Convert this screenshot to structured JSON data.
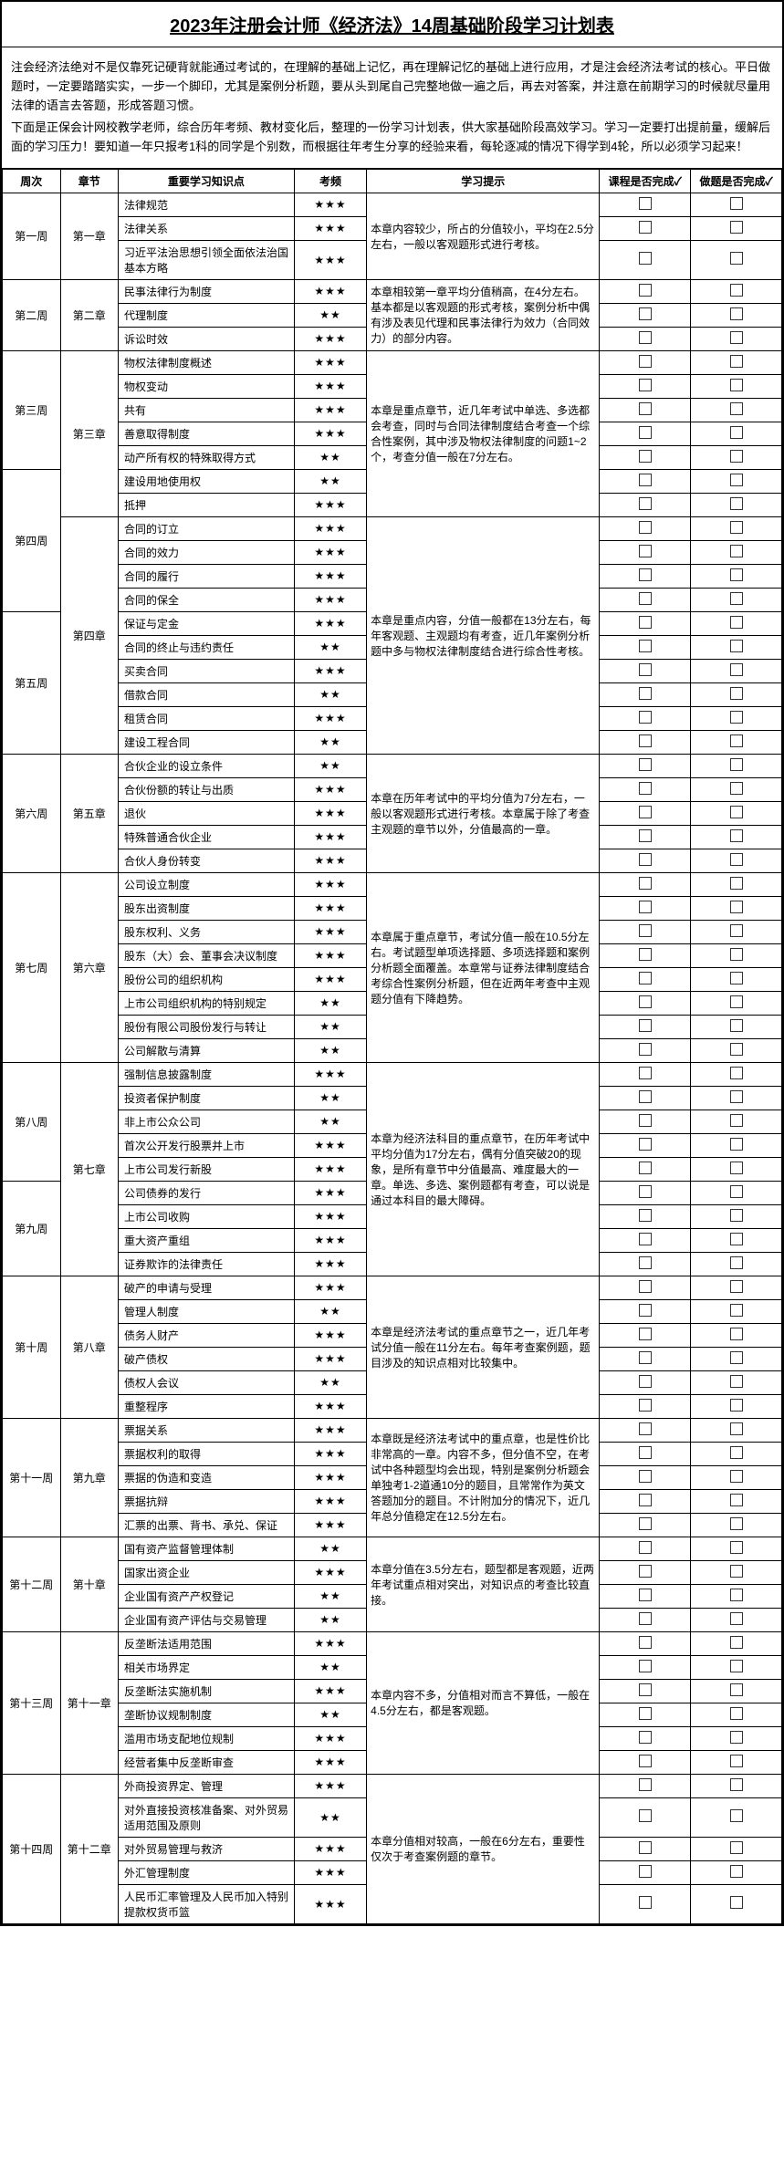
{
  "title": "2023年注册会计师《经济法》14周基础阶段学习计划表",
  "intro_p1": "注会经济法绝对不是仅靠死记硬背就能通过考试的，在理解的基础上记忆，再在理解记忆的基础上进行应用，才是注会经济法考试的核心。平日做题时，一定要踏踏实实，一步一个脚印，尤其是案例分析题，要从头到尾自己完整地做一遍之后，再去对答案，并注意在前期学习的时候就尽量用法律的语言去答题，形成答题习惯。",
  "intro_p2": "下面是正保会计网校教学老师，综合历年考频、教材变化后，整理的一份学习计划表，供大家基础阶段高效学习。学习一定要打出提前量，缓解后面的学习压力！要知道一年只报考1科的同学是个别数，而根据往年考生分享的经验来看，每轮逐减的情况下得学到4轮，所以必须学习起来！",
  "headers": {
    "week": "周次",
    "chapter": "章节",
    "point": "重要学习知识点",
    "freq": "考频",
    "tip": "学习提示",
    "done1": "课程是否完成✓",
    "done2": "做题是否完成✓"
  },
  "plan": [
    {
      "week": "第一周",
      "chapterBlocks": [
        {
          "chapter": "第一章",
          "rows": [
            {
              "point": "法律规范",
              "freq": "★★★"
            },
            {
              "point": "法律关系",
              "freq": "★★★"
            },
            {
              "point": "习近平法治思想引领全面依法治国基本方略",
              "freq": "★★★"
            }
          ],
          "tip": "本章内容较少，所占的分值较小，平均在2.5分左右，一般以客观题形式进行考核。"
        }
      ]
    },
    {
      "week": "第二周",
      "chapterBlocks": [
        {
          "chapter": "第二章",
          "rows": [
            {
              "point": "民事法律行为制度",
              "freq": "★★★"
            },
            {
              "point": "代理制度",
              "freq": "★★"
            },
            {
              "point": "诉讼时效",
              "freq": "★★★"
            }
          ],
          "tip": "本章相较第一章平均分值稍高，在4分左右。基本都是以客观题的形式考核，案例分析中偶有涉及表见代理和民事法律行为效力（合同效力）的部分内容。"
        }
      ]
    },
    {
      "week": "第三周",
      "chapterBlocks": [
        {
          "chapter": "第三章",
          "rows": [
            {
              "point": "物权法律制度概述",
              "freq": "★★★"
            },
            {
              "point": "物权变动",
              "freq": "★★★"
            },
            {
              "point": "共有",
              "freq": "★★★"
            },
            {
              "point": "善意取得制度",
              "freq": "★★★"
            },
            {
              "point": "动产所有权的特殊取得方式",
              "freq": "★★"
            },
            {
              "point": "建设用地使用权",
              "freq": "★★"
            },
            {
              "point": "抵押",
              "freq": "★★★"
            }
          ],
          "tip": "本章是重点章节，近几年考试中单选、多选都会考查，同时与合同法律制度结合考查一个综合性案例，其中涉及物权法律制度的问题1~2个，考查分值一般在7分左右。",
          "splitAfter": 5,
          "weekAfterSplit": "第四周"
        }
      ]
    },
    {
      "week": "第五周",
      "mergeUpWeek": true,
      "chapterBlocks": [
        {
          "chapter": "第四章",
          "weekRows": [
            {
              "week": "第四周",
              "count": 4,
              "skip": true
            },
            {
              "week": "第五周",
              "count": 6
            }
          ],
          "rows": [
            {
              "point": "合同的订立",
              "freq": "★★★"
            },
            {
              "point": "合同的效力",
              "freq": "★★★"
            },
            {
              "point": "合同的履行",
              "freq": "★★★"
            },
            {
              "point": "合同的保全",
              "freq": "★★★"
            },
            {
              "point": "保证与定金",
              "freq": "★★★"
            },
            {
              "point": "合同的终止与违约责任",
              "freq": "★★"
            },
            {
              "point": "买卖合同",
              "freq": "★★★"
            },
            {
              "point": "借款合同",
              "freq": "★★"
            },
            {
              "point": "租赁合同",
              "freq": "★★★"
            },
            {
              "point": "建设工程合同",
              "freq": "★★"
            }
          ],
          "tip": "本章是重点内容，分值一般都在13分左右，每年客观题、主观题均有考查，近几年案例分析题中多与物权法律制度结合进行综合性考核。"
        }
      ]
    },
    {
      "week": "第六周",
      "chapterBlocks": [
        {
          "chapter": "第五章",
          "rows": [
            {
              "point": "合伙企业的设立条件",
              "freq": "★★"
            },
            {
              "point": "合伙份额的转让与出质",
              "freq": "★★★"
            },
            {
              "point": "退伙",
              "freq": "★★★"
            },
            {
              "point": "特殊普通合伙企业",
              "freq": "★★★"
            },
            {
              "point": "合伙人身份转变",
              "freq": "★★★"
            }
          ],
          "tip": "本章在历年考试中的平均分值为7分左右，一般以客观题形式进行考核。本章属于除了考查主观题的章节以外，分值最高的一章。"
        }
      ]
    },
    {
      "week": "第七周",
      "chapterBlocks": [
        {
          "chapter": "第六章",
          "rows": [
            {
              "point": "公司设立制度",
              "freq": "★★★"
            },
            {
              "point": "股东出资制度",
              "freq": "★★★"
            },
            {
              "point": "股东权利、义务",
              "freq": "★★★"
            },
            {
              "point": "股东（大）会、董事会决议制度",
              "freq": "★★★"
            },
            {
              "point": "股份公司的组织机构",
              "freq": "★★★"
            },
            {
              "point": "上市公司组织机构的特别规定",
              "freq": "★★"
            },
            {
              "point": "股份有限公司股份发行与转让",
              "freq": "★★"
            },
            {
              "point": "公司解散与清算",
              "freq": "★★"
            }
          ],
          "tip": "本章属于重点章节，考试分值一般在10.5分左右。考试题型单项选择题、多项选择题和案例分析题全面覆盖。本章常与证券法律制度结合考综合性案例分析题，但在近两年考查中主观题分值有下降趋势。"
        }
      ]
    },
    {
      "week": "第八周",
      "chapterBlocks": [
        {
          "chapter": "第七章",
          "weekRows": [
            {
              "week": "第八周",
              "count": 5
            },
            {
              "week": "第九周",
              "count": 4
            }
          ],
          "rows": [
            {
              "point": "强制信息披露制度",
              "freq": "★★★"
            },
            {
              "point": "投资者保护制度",
              "freq": "★★"
            },
            {
              "point": "非上市公众公司",
              "freq": "★★"
            },
            {
              "point": "首次公开发行股票并上市",
              "freq": "★★★"
            },
            {
              "point": "上市公司发行新股",
              "freq": "★★★"
            },
            {
              "point": "公司债券的发行",
              "freq": "★★★"
            },
            {
              "point": "上市公司收购",
              "freq": "★★★"
            },
            {
              "point": "重大资产重组",
              "freq": "★★★"
            },
            {
              "point": "证券欺诈的法律责任",
              "freq": "★★★"
            }
          ],
          "tip": "本章为经济法科目的重点章节，在历年考试中平均分值为17分左右，偶有分值突破20的现象，是所有章节中分值最高、难度最大的一章。单选、多选、案例题都有考查，可以说是通过本科目的最大障碍。"
        }
      ]
    },
    {
      "week": "第十周",
      "chapterBlocks": [
        {
          "chapter": "第八章",
          "rows": [
            {
              "point": "破产的申请与受理",
              "freq": "★★★"
            },
            {
              "point": "管理人制度",
              "freq": "★★"
            },
            {
              "point": "债务人财产",
              "freq": "★★★"
            },
            {
              "point": "破产债权",
              "freq": "★★★"
            },
            {
              "point": "债权人会议",
              "freq": "★★"
            },
            {
              "point": "重整程序",
              "freq": "★★★"
            }
          ],
          "tip": "本章是经济法考试的重点章节之一，近几年考试分值一般在11分左右。每年考查案例题，题目涉及的知识点相对比较集中。"
        }
      ]
    },
    {
      "week": "第十一周",
      "chapterBlocks": [
        {
          "chapter": "第九章",
          "rows": [
            {
              "point": "票据关系",
              "freq": "★★★"
            },
            {
              "point": "票据权利的取得",
              "freq": "★★★"
            },
            {
              "point": "票据的伪造和变造",
              "freq": "★★★"
            },
            {
              "point": "票据抗辩",
              "freq": "★★★"
            },
            {
              "point": "汇票的出票、背书、承兑、保证",
              "freq": "★★★"
            }
          ],
          "tip": "本章既是经济法考试中的重点章，也是性价比非常高的一章。内容不多，但分值不空，在考试中各种题型均会出现，特别是案例分析题会单独考1-2道通10分的题目，且常常作为英文答题加分的题目。不计附加分的情况下，近几年总分值稳定在12.5分左右。"
        }
      ]
    },
    {
      "week": "第十二周",
      "chapterBlocks": [
        {
          "chapter": "第十章",
          "rows": [
            {
              "point": "国有资产监督管理体制",
              "freq": "★★"
            },
            {
              "point": "国家出资企业",
              "freq": "★★★"
            },
            {
              "point": "企业国有资产产权登记",
              "freq": "★★"
            },
            {
              "point": "企业国有资产评估与交易管理",
              "freq": "★★"
            }
          ],
          "tip": "本章分值在3.5分左右，题型都是客观题，近两年考试重点相对突出，对知识点的考查比较直接。"
        }
      ]
    },
    {
      "week": "第十三周",
      "chapterBlocks": [
        {
          "chapter": "第十一章",
          "rows": [
            {
              "point": "反垄断法适用范围",
              "freq": "★★★"
            },
            {
              "point": "相关市场界定",
              "freq": "★★"
            },
            {
              "point": "反垄断法实施机制",
              "freq": "★★★"
            },
            {
              "point": "垄断协议规制制度",
              "freq": "★★"
            },
            {
              "point": "滥用市场支配地位规制",
              "freq": "★★★"
            },
            {
              "point": "经营者集中反垄断审查",
              "freq": "★★★"
            }
          ],
          "tip": "本章内容不多，分值相对而言不算低，一般在4.5分左右，都是客观题。"
        }
      ]
    },
    {
      "week": "第十四周",
      "chapterBlocks": [
        {
          "chapter": "第十二章",
          "rows": [
            {
              "point": "外商投资界定、管理",
              "freq": "★★★"
            },
            {
              "point": "对外直接投资核准备案、对外贸易适用范围及原则",
              "freq": "★★"
            },
            {
              "point": "对外贸易管理与救济",
              "freq": "★★★"
            },
            {
              "point": "外汇管理制度",
              "freq": "★★★"
            },
            {
              "point": "人民币汇率管理及人民币加入特别提款权货币篮",
              "freq": "★★★"
            }
          ],
          "tip": "本章分值相对较高，一般在6分左右，重要性仅次于考查案例题的章节。"
        }
      ]
    }
  ]
}
